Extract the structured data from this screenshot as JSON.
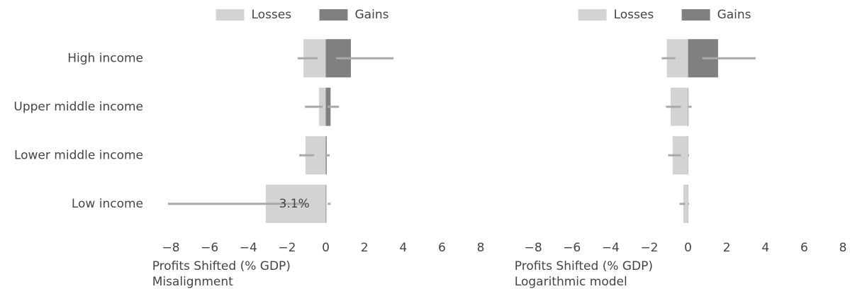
{
  "chart_data": [
    {
      "type": "diverging-bar",
      "title": "Misalignment",
      "xlabel": "Profits Shifted (% GDP)",
      "categories": [
        "High income",
        "Upper middle income",
        "Lower middle income",
        "Low income"
      ],
      "series": [
        {
          "name": "Losses",
          "color": "#d3d3d3",
          "values": [
            -1.15,
            -0.35,
            -1.05,
            -3.1
          ],
          "value_labels": [
            null,
            null,
            null,
            "3.1%"
          ],
          "errors": [
            [
              -1.45,
              -0.42
            ],
            [
              -1.08,
              -0.16
            ],
            [
              -1.37,
              -0.6
            ],
            [
              -8.15,
              -1.0
            ]
          ]
        },
        {
          "name": "Gains",
          "color": "#808080",
          "values": [
            1.3,
            0.25,
            0.05,
            0.03
          ],
          "errors": [
            [
              0.53,
              3.5
            ],
            [
              0.09,
              0.68
            ],
            [
              0.02,
              0.2
            ],
            [
              0.1,
              0.25
            ]
          ]
        }
      ],
      "error_color": "#a9a9a9",
      "xlim": [
        -9,
        9
      ],
      "xticks": [
        {
          "value": -8,
          "label": "−8"
        },
        {
          "value": -6,
          "label": "−6"
        },
        {
          "value": -4,
          "label": "−4"
        },
        {
          "value": -2,
          "label": "−2"
        },
        0,
        2,
        4,
        6,
        8
      ]
    },
    {
      "type": "diverging-bar",
      "title": "Logarithmic model",
      "xlabel": "Profits Shifted (% GDP)",
      "series": [
        {
          "name": "Losses",
          "color": "#d3d3d3",
          "values": [
            -1.1,
            -0.9,
            -0.8,
            -0.25
          ],
          "errors": [
            [
              -1.36,
              -0.66
            ],
            [
              -1.14,
              -0.37
            ],
            [
              -1.03,
              -0.37
            ],
            [
              -0.44,
              -0.15
            ]
          ]
        },
        {
          "name": "Gains",
          "color": "#808080",
          "values": [
            1.55,
            0.02,
            0.01,
            0.01
          ],
          "errors": [
            [
              0.73,
              3.49
            ],
            [
              0.0,
              0.18
            ],
            [
              0.0,
              0.05
            ],
            [
              0.0,
              0.05
            ]
          ]
        }
      ],
      "error_color": "#a9a9a9",
      "xlim": [
        -9,
        9
      ],
      "xticks": [
        {
          "value": -8,
          "label": "−8"
        },
        {
          "value": -6,
          "label": "−6"
        },
        {
          "value": -4,
          "label": "−4"
        },
        {
          "value": -2,
          "label": "−2"
        },
        0,
        2,
        4,
        6,
        8
      ]
    }
  ]
}
